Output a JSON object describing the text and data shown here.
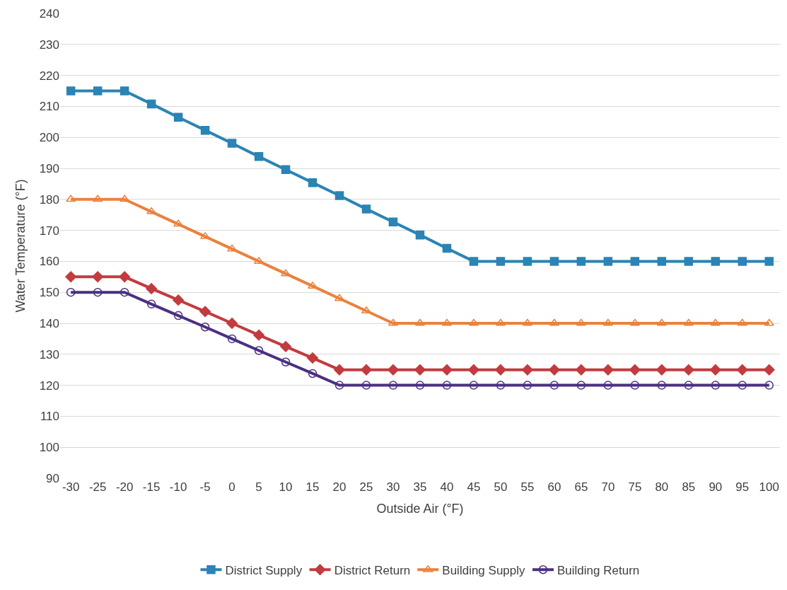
{
  "chart_data": {
    "type": "line",
    "xlabel": "Outside Air (°F)",
    "ylabel": "Water Temperature (°F)",
    "categories": [
      "-30",
      "-25",
      "-20",
      "-15",
      "-10",
      "-5",
      "0",
      "5",
      "10",
      "15",
      "20",
      "25",
      "30",
      "35",
      "40",
      "45",
      "50",
      "55",
      "60",
      "65",
      "70",
      "75",
      "80",
      "85",
      "90",
      "95",
      "100"
    ],
    "series": [
      {
        "name": "District Supply",
        "color": "#2a84b4",
        "marker": "square",
        "values": [
          215,
          215,
          215,
          210.8,
          206.5,
          202.3,
          198.1,
          193.8,
          189.6,
          185.4,
          181.2,
          176.9,
          172.7,
          168.5,
          164.2,
          160,
          160,
          160,
          160,
          160,
          160,
          160,
          160,
          160,
          160,
          160,
          160
        ]
      },
      {
        "name": "District Return",
        "color": "#c23b3f",
        "marker": "diamond",
        "values": [
          155,
          155,
          155,
          151.2,
          147.5,
          143.8,
          140,
          136.2,
          132.5,
          128.8,
          125,
          125,
          125,
          125,
          125,
          125,
          125,
          125,
          125,
          125,
          125,
          125,
          125,
          125,
          125,
          125,
          125
        ]
      },
      {
        "name": "Building Supply",
        "color": "#ea823e",
        "marker": "triangle",
        "values": [
          180,
          180,
          180,
          176,
          172,
          168,
          164,
          160,
          156,
          152,
          148,
          144,
          140,
          140,
          140,
          140,
          140,
          140,
          140,
          140,
          140,
          140,
          140,
          140,
          140,
          140,
          140
        ]
      },
      {
        "name": "Building Return",
        "color": "#4a2f82",
        "marker": "circle",
        "values": [
          150,
          150,
          150,
          146.2,
          142.5,
          138.8,
          135,
          131.2,
          127.5,
          123.8,
          120,
          120,
          120,
          120,
          120,
          120,
          120,
          120,
          120,
          120,
          120,
          120,
          120,
          120,
          120,
          120,
          120
        ]
      }
    ],
    "ylim": [
      90,
      240
    ],
    "yticks": [
      90,
      100,
      110,
      120,
      130,
      140,
      150,
      160,
      170,
      180,
      190,
      200,
      210,
      220,
      230,
      240
    ],
    "grid": "y",
    "legend": "bottom",
    "line_style": "solid"
  }
}
